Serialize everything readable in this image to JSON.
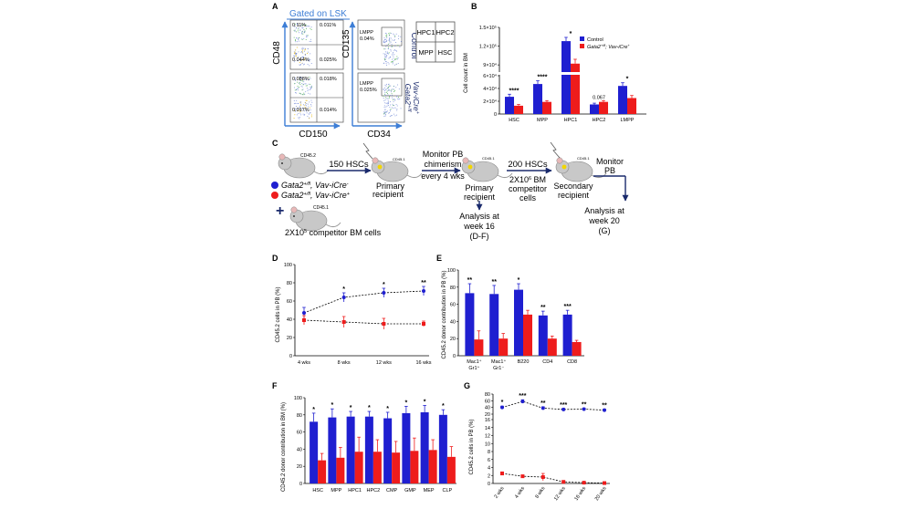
{
  "panels": {
    "A": {
      "letter": "A",
      "gate_label": "Gated on LSK",
      "y_axis_left": "CD48",
      "x_axis_left": "CD150",
      "y_axis_right": "CD135",
      "x_axis_right": "CD34",
      "row_labels": [
        "Control",
        "Gata2",
        "+/fl",
        "Vav-iCre",
        "+"
      ],
      "control_quadrants": [
        "0.11%",
        "0.011%",
        "0.044%",
        "0.025%"
      ],
      "mutant_quadrants": [
        "0.088%",
        "0.018%",
        "0.017%",
        "0.014%"
      ],
      "control_lmpp": [
        "LMPP",
        "0.04%"
      ],
      "mutant_lmpp": [
        "LMPP",
        "0.025%"
      ],
      "key_cells": [
        "HPC1",
        "HPC2",
        "MPP",
        "HSC"
      ]
    },
    "C": {
      "letter": "C",
      "donor_tag": "CD45.2",
      "competitor_tag": "CD45.1",
      "legend_neg_geno": "Gata2",
      "legend_neg_sup": "+/fl",
      "legend_neg_tail": ", Vav-iCre",
      "legend_neg_sign": "-",
      "legend_pos_geno": "Gata2",
      "legend_pos_sup": "+/fl",
      "legend_pos_tail": ", Vav-iCre",
      "legend_pos_sign": "+",
      "plus_sign": "+",
      "competitor_base": "2X10",
      "competitor_exp": "5",
      "competitor_tail": " competitor BM cells",
      "step_150": "150 HSCs",
      "primary_recipient": [
        "Primary",
        "recipient"
      ],
      "monitor_pb": [
        "Monitor PB",
        "chimerism",
        "every 4 wks"
      ],
      "primary_recipient_2": [
        "Primary",
        "recipient"
      ],
      "analysis_16": [
        "Analysis at",
        "week 16",
        "(D-F)"
      ],
      "step_200": "200 HSCs",
      "bm_base": "2X10",
      "bm_exp": "6",
      "bm_tail": " BM",
      "bm_lines": [
        "competitor",
        "cells"
      ],
      "secondary_recipient": [
        "Secondary",
        "recipient"
      ],
      "monitor_pb_2": [
        "Monitor",
        "PB"
      ],
      "analysis_20": [
        "Analysis at",
        "week 20",
        "(G)"
      ]
    }
  },
  "colors": {
    "control": "#1f1fd0",
    "mutant": "#ee1c1c",
    "navy": "#1a2a6c",
    "cyan": "#3d7ed6"
  },
  "chart_data": [
    {
      "id": "B",
      "letter": "B",
      "type": "bar",
      "ylabel": "Cell count in BM",
      "categories": [
        "HSC",
        "MPP",
        "HPC1",
        "HPC2",
        "LMPP"
      ],
      "yticks_low": [
        "0",
        "2×10⁴",
        "4×10⁴",
        "6×10⁴"
      ],
      "yticks_high": [
        "9×10⁴",
        "1.2×10⁵",
        "1.5×10⁵"
      ],
      "series": [
        {
          "name": "Control",
          "values": [
            27000,
            47000,
            128000,
            15000,
            44000
          ],
          "errors": [
            4000,
            5000,
            6000,
            2000,
            5000
          ]
        },
        {
          "name": "Gata2+/fl; Vav-iCre+",
          "values": [
            13000,
            19000,
            92000,
            19000,
            25000
          ],
          "errors": [
            2000,
            2000,
            7000,
            2000,
            4000
          ]
        }
      ],
      "legend": [
        "Control",
        "Gata2",
        "+/fl",
        "; Vav-iCre",
        "+"
      ],
      "annotations": [
        "****",
        "****",
        "*",
        "0.067",
        "*"
      ]
    },
    {
      "id": "D",
      "letter": "D",
      "type": "line",
      "ylabel": "CD45.2 cells in PB (%)",
      "ylim": [
        0,
        100
      ],
      "yticks": [
        "0",
        "20",
        "40",
        "60",
        "80",
        "100"
      ],
      "categories": [
        "4 wks",
        "8 wks",
        "12 wks",
        "16 wks"
      ],
      "series": [
        {
          "name": "Gata2+/fl; Vav-iCre-",
          "values": [
            47,
            64,
            69,
            71
          ],
          "errors": [
            6,
            5,
            5,
            5
          ]
        },
        {
          "name": "Gata2+/fl; Vav-iCre+",
          "values": [
            39,
            37,
            35,
            35
          ],
          "errors": [
            5,
            6,
            6,
            3
          ]
        }
      ],
      "annotations": [
        "",
        "*",
        "*",
        "**"
      ]
    },
    {
      "id": "E",
      "letter": "E",
      "type": "bar",
      "ylabel": "CD45.2 donor contribution in PB (%)",
      "ylim": [
        0,
        100
      ],
      "yticks": [
        "0",
        "20",
        "40",
        "60",
        "80",
        "100"
      ],
      "category_lines": [
        [
          "Mac1⁺",
          "Gr1⁺"
        ],
        [
          "Mac1⁺",
          "Gr1⁻"
        ],
        [
          "B220"
        ],
        [
          "CD4"
        ],
        [
          "CD8"
        ]
      ],
      "series": [
        {
          "name": "Gata2+/fl; Vav-iCre-",
          "values": [
            73,
            72,
            77,
            47,
            48
          ],
          "errors": [
            11,
            10,
            7,
            5,
            5
          ]
        },
        {
          "name": "Gata2+/fl; Vav-iCre+",
          "values": [
            19,
            20,
            48,
            20,
            16
          ],
          "errors": [
            10,
            6,
            5,
            3,
            2
          ]
        }
      ],
      "annotations": [
        "**",
        "**",
        "*",
        "**",
        "***"
      ]
    },
    {
      "id": "F",
      "letter": "F",
      "type": "bar",
      "ylabel": "CD45.2 donor contribution in BM (%)",
      "ylim": [
        0,
        100
      ],
      "yticks": [
        "0",
        "20",
        "40",
        "60",
        "80",
        "100"
      ],
      "categories": [
        "HSC",
        "MPP",
        "HPC1",
        "HPC2",
        "CMP",
        "GMP",
        "MEP",
        "CLP"
      ],
      "series": [
        {
          "name": "Gata2+/fl; Vav-iCre-",
          "values": [
            72,
            77,
            78,
            78,
            76,
            82,
            83,
            80
          ],
          "errors": [
            10,
            10,
            6,
            6,
            7,
            8,
            8,
            6
          ]
        },
        {
          "name": "Gata2+/fl; Vav-iCre+",
          "values": [
            27,
            30,
            37,
            37,
            36,
            38,
            39,
            31
          ],
          "errors": [
            8,
            12,
            17,
            14,
            13,
            15,
            12,
            12
          ]
        }
      ],
      "annotations": [
        "*",
        "*",
        "*",
        "*",
        "*",
        "*",
        "*",
        "*"
      ]
    },
    {
      "id": "G",
      "letter": "G",
      "type": "line",
      "ylabel": "CD45.2 cells in PB (%)",
      "ylim": [
        0,
        80
      ],
      "yticks": [
        "0",
        "2",
        "4",
        "6",
        "8",
        "10",
        "12",
        "14",
        "16",
        "20",
        "40",
        "60",
        "80"
      ],
      "categories": [
        "2 wks",
        "4 wks",
        "8 wks",
        "12 wks",
        "16 wks",
        "20 wks"
      ],
      "series": [
        {
          "name": "Gata2+/fl; Vav-iCre-",
          "values": [
            40,
            58,
            38,
            34,
            35,
            32
          ],
          "errors": [
            4,
            5,
            4,
            3,
            3,
            3
          ]
        },
        {
          "name": "Gata2+/fl; Vav-iCre+",
          "values": [
            2.5,
            1.8,
            1.6,
            0.4,
            0.2,
            0.1
          ],
          "errors": [
            0.4,
            0.3,
            0.9,
            0.2,
            0.1,
            0.1
          ]
        }
      ],
      "annotations": [
        "*",
        "***",
        "**",
        "***",
        "**",
        "**"
      ]
    }
  ]
}
